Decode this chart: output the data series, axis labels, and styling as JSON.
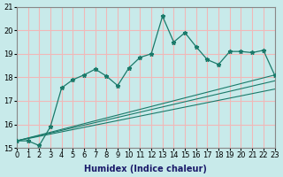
{
  "xlabel": "Humidex (Indice chaleur)",
  "ylabel": "",
  "bg_color": "#c8eaea",
  "grid_color": "#f0b8b8",
  "line_color": "#1a7a6a",
  "xlim": [
    0,
    23
  ],
  "ylim": [
    15,
    21
  ],
  "xticks": [
    0,
    1,
    2,
    3,
    4,
    5,
    6,
    7,
    8,
    9,
    10,
    11,
    12,
    13,
    14,
    15,
    16,
    17,
    18,
    19,
    20,
    21,
    22,
    23
  ],
  "yticks": [
    15,
    16,
    17,
    18,
    19,
    20,
    21
  ],
  "main_line_x": [
    0,
    1,
    2,
    3,
    4,
    5,
    6,
    7,
    8,
    9,
    10,
    11,
    12,
    13,
    14,
    15,
    16,
    17,
    18,
    19,
    20,
    21,
    22,
    23
  ],
  "main_line_y": [
    15.3,
    15.3,
    15.1,
    15.9,
    17.55,
    17.9,
    18.1,
    18.35,
    18.05,
    17.65,
    18.4,
    18.85,
    19.0,
    20.6,
    19.5,
    19.9,
    19.3,
    18.75,
    18.55,
    19.1,
    19.1,
    19.05,
    19.15,
    18.1
  ],
  "line2_x": [
    0,
    23
  ],
  "line2_y": [
    15.3,
    18.1
  ],
  "line3_x": [
    0,
    23
  ],
  "line3_y": [
    15.3,
    17.85
  ],
  "line4_x": [
    0,
    23
  ],
  "line4_y": [
    15.3,
    17.5
  ]
}
